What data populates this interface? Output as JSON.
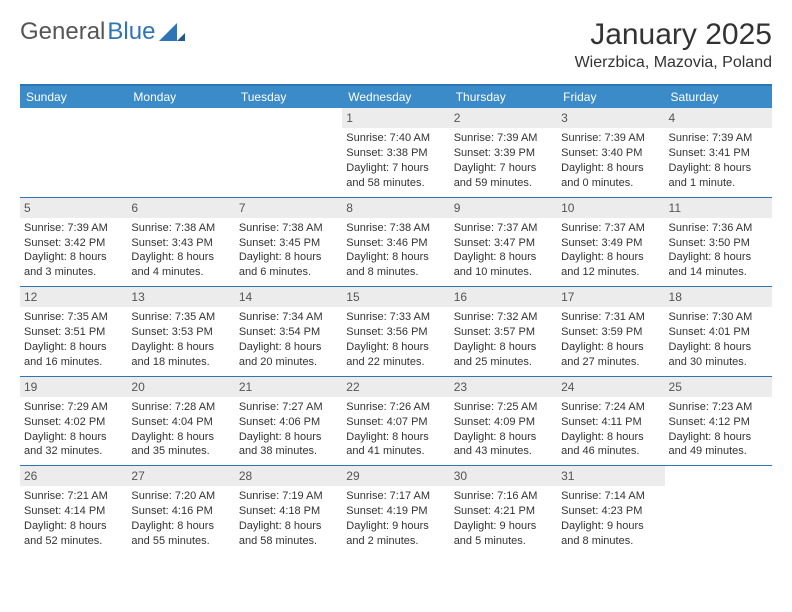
{
  "logo": {
    "text1": "General",
    "text2": "Blue"
  },
  "title": "January 2025",
  "subtitle": "Wierzbica, Mazovia, Poland",
  "colors": {
    "header_bg": "#3b8bc9",
    "divider": "#2e75b6",
    "daynum_bg": "#ececec",
    "text": "#333333"
  },
  "day_labels": [
    "Sunday",
    "Monday",
    "Tuesday",
    "Wednesday",
    "Thursday",
    "Friday",
    "Saturday"
  ],
  "weeks": [
    [
      {
        "n": "",
        "sr": "",
        "ss": "",
        "dl1": "",
        "dl2": ""
      },
      {
        "n": "",
        "sr": "",
        "ss": "",
        "dl1": "",
        "dl2": ""
      },
      {
        "n": "",
        "sr": "",
        "ss": "",
        "dl1": "",
        "dl2": ""
      },
      {
        "n": "1",
        "sr": "Sunrise: 7:40 AM",
        "ss": "Sunset: 3:38 PM",
        "dl1": "Daylight: 7 hours",
        "dl2": "and 58 minutes."
      },
      {
        "n": "2",
        "sr": "Sunrise: 7:39 AM",
        "ss": "Sunset: 3:39 PM",
        "dl1": "Daylight: 7 hours",
        "dl2": "and 59 minutes."
      },
      {
        "n": "3",
        "sr": "Sunrise: 7:39 AM",
        "ss": "Sunset: 3:40 PM",
        "dl1": "Daylight: 8 hours",
        "dl2": "and 0 minutes."
      },
      {
        "n": "4",
        "sr": "Sunrise: 7:39 AM",
        "ss": "Sunset: 3:41 PM",
        "dl1": "Daylight: 8 hours",
        "dl2": "and 1 minute."
      }
    ],
    [
      {
        "n": "5",
        "sr": "Sunrise: 7:39 AM",
        "ss": "Sunset: 3:42 PM",
        "dl1": "Daylight: 8 hours",
        "dl2": "and 3 minutes."
      },
      {
        "n": "6",
        "sr": "Sunrise: 7:38 AM",
        "ss": "Sunset: 3:43 PM",
        "dl1": "Daylight: 8 hours",
        "dl2": "and 4 minutes."
      },
      {
        "n": "7",
        "sr": "Sunrise: 7:38 AM",
        "ss": "Sunset: 3:45 PM",
        "dl1": "Daylight: 8 hours",
        "dl2": "and 6 minutes."
      },
      {
        "n": "8",
        "sr": "Sunrise: 7:38 AM",
        "ss": "Sunset: 3:46 PM",
        "dl1": "Daylight: 8 hours",
        "dl2": "and 8 minutes."
      },
      {
        "n": "9",
        "sr": "Sunrise: 7:37 AM",
        "ss": "Sunset: 3:47 PM",
        "dl1": "Daylight: 8 hours",
        "dl2": "and 10 minutes."
      },
      {
        "n": "10",
        "sr": "Sunrise: 7:37 AM",
        "ss": "Sunset: 3:49 PM",
        "dl1": "Daylight: 8 hours",
        "dl2": "and 12 minutes."
      },
      {
        "n": "11",
        "sr": "Sunrise: 7:36 AM",
        "ss": "Sunset: 3:50 PM",
        "dl1": "Daylight: 8 hours",
        "dl2": "and 14 minutes."
      }
    ],
    [
      {
        "n": "12",
        "sr": "Sunrise: 7:35 AM",
        "ss": "Sunset: 3:51 PM",
        "dl1": "Daylight: 8 hours",
        "dl2": "and 16 minutes."
      },
      {
        "n": "13",
        "sr": "Sunrise: 7:35 AM",
        "ss": "Sunset: 3:53 PM",
        "dl1": "Daylight: 8 hours",
        "dl2": "and 18 minutes."
      },
      {
        "n": "14",
        "sr": "Sunrise: 7:34 AM",
        "ss": "Sunset: 3:54 PM",
        "dl1": "Daylight: 8 hours",
        "dl2": "and 20 minutes."
      },
      {
        "n": "15",
        "sr": "Sunrise: 7:33 AM",
        "ss": "Sunset: 3:56 PM",
        "dl1": "Daylight: 8 hours",
        "dl2": "and 22 minutes."
      },
      {
        "n": "16",
        "sr": "Sunrise: 7:32 AM",
        "ss": "Sunset: 3:57 PM",
        "dl1": "Daylight: 8 hours",
        "dl2": "and 25 minutes."
      },
      {
        "n": "17",
        "sr": "Sunrise: 7:31 AM",
        "ss": "Sunset: 3:59 PM",
        "dl1": "Daylight: 8 hours",
        "dl2": "and 27 minutes."
      },
      {
        "n": "18",
        "sr": "Sunrise: 7:30 AM",
        "ss": "Sunset: 4:01 PM",
        "dl1": "Daylight: 8 hours",
        "dl2": "and 30 minutes."
      }
    ],
    [
      {
        "n": "19",
        "sr": "Sunrise: 7:29 AM",
        "ss": "Sunset: 4:02 PM",
        "dl1": "Daylight: 8 hours",
        "dl2": "and 32 minutes."
      },
      {
        "n": "20",
        "sr": "Sunrise: 7:28 AM",
        "ss": "Sunset: 4:04 PM",
        "dl1": "Daylight: 8 hours",
        "dl2": "and 35 minutes."
      },
      {
        "n": "21",
        "sr": "Sunrise: 7:27 AM",
        "ss": "Sunset: 4:06 PM",
        "dl1": "Daylight: 8 hours",
        "dl2": "and 38 minutes."
      },
      {
        "n": "22",
        "sr": "Sunrise: 7:26 AM",
        "ss": "Sunset: 4:07 PM",
        "dl1": "Daylight: 8 hours",
        "dl2": "and 41 minutes."
      },
      {
        "n": "23",
        "sr": "Sunrise: 7:25 AM",
        "ss": "Sunset: 4:09 PM",
        "dl1": "Daylight: 8 hours",
        "dl2": "and 43 minutes."
      },
      {
        "n": "24",
        "sr": "Sunrise: 7:24 AM",
        "ss": "Sunset: 4:11 PM",
        "dl1": "Daylight: 8 hours",
        "dl2": "and 46 minutes."
      },
      {
        "n": "25",
        "sr": "Sunrise: 7:23 AM",
        "ss": "Sunset: 4:12 PM",
        "dl1": "Daylight: 8 hours",
        "dl2": "and 49 minutes."
      }
    ],
    [
      {
        "n": "26",
        "sr": "Sunrise: 7:21 AM",
        "ss": "Sunset: 4:14 PM",
        "dl1": "Daylight: 8 hours",
        "dl2": "and 52 minutes."
      },
      {
        "n": "27",
        "sr": "Sunrise: 7:20 AM",
        "ss": "Sunset: 4:16 PM",
        "dl1": "Daylight: 8 hours",
        "dl2": "and 55 minutes."
      },
      {
        "n": "28",
        "sr": "Sunrise: 7:19 AM",
        "ss": "Sunset: 4:18 PM",
        "dl1": "Daylight: 8 hours",
        "dl2": "and 58 minutes."
      },
      {
        "n": "29",
        "sr": "Sunrise: 7:17 AM",
        "ss": "Sunset: 4:19 PM",
        "dl1": "Daylight: 9 hours",
        "dl2": "and 2 minutes."
      },
      {
        "n": "30",
        "sr": "Sunrise: 7:16 AM",
        "ss": "Sunset: 4:21 PM",
        "dl1": "Daylight: 9 hours",
        "dl2": "and 5 minutes."
      },
      {
        "n": "31",
        "sr": "Sunrise: 7:14 AM",
        "ss": "Sunset: 4:23 PM",
        "dl1": "Daylight: 9 hours",
        "dl2": "and 8 minutes."
      },
      {
        "n": "",
        "sr": "",
        "ss": "",
        "dl1": "",
        "dl2": ""
      }
    ]
  ]
}
